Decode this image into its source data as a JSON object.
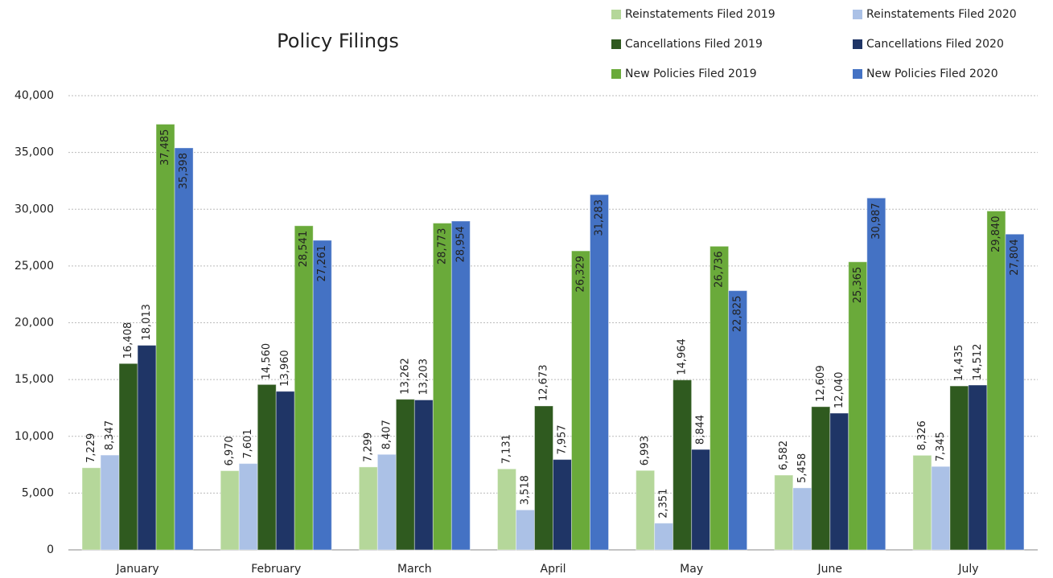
{
  "chart_data": {
    "type": "bar",
    "title": "Policy Filings",
    "categories": [
      "January",
      "February",
      "March",
      "April",
      "May",
      "June",
      "July"
    ],
    "series": [
      {
        "name": "Reinstatements Filed 2019",
        "color": "#b5d79a",
        "values": [
          7229,
          6970,
          7299,
          7131,
          6993,
          6582,
          8326
        ],
        "value_labels": [
          "7,229",
          "6,970",
          "7,299",
          "7,131",
          "6,993",
          "6,582",
          "8,326"
        ]
      },
      {
        "name": "Reinstatements Filed 2020",
        "color": "#abc1e6",
        "values": [
          8347,
          7601,
          8407,
          3518,
          2351,
          5458,
          7345
        ],
        "value_labels": [
          "8,347",
          "7,601",
          "8,407",
          "3,518",
          "2,351",
          "5,458",
          "7,345"
        ]
      },
      {
        "name": "Cancellations Filed 2019",
        "color": "#2f5a1f",
        "values": [
          16408,
          14560,
          13262,
          12673,
          14964,
          12609,
          14435
        ],
        "value_labels": [
          "16,408",
          "14,560",
          "13,262",
          "12,673",
          "14,964",
          "12,609",
          "14,435"
        ]
      },
      {
        "name": "Cancellations Filed 2020",
        "color": "#1f3566",
        "values": [
          18013,
          13960,
          13203,
          7957,
          8844,
          12040,
          14512
        ],
        "value_labels": [
          "18,013",
          "13,960",
          "13,203",
          "7,957",
          "8,844",
          "12,040",
          "14,512"
        ]
      },
      {
        "name": "New Policies Filed 2019",
        "color": "#6aaa3a",
        "values": [
          37485,
          28541,
          28773,
          26329,
          26736,
          25365,
          29840
        ],
        "value_labels": [
          "37,485",
          "28,541",
          "28,773",
          "26,329",
          "26,736",
          "25,365",
          "29,840"
        ]
      },
      {
        "name": "New Policies Filed 2020",
        "color": "#4472c4",
        "values": [
          35398,
          27261,
          28954,
          31283,
          22825,
          30987,
          27804
        ],
        "value_labels": [
          "35,398",
          "27,261",
          "28,954",
          "31,283",
          "22,825",
          "30,987",
          "27,804"
        ]
      }
    ],
    "ylim": [
      0,
      40000
    ],
    "yticks": [
      0,
      {
        "value": 5000,
        "label": "5,000"
      },
      {
        "value": 10000,
        "label": "10,000"
      },
      {
        "value": 15000,
        "label": "15,000"
      },
      {
        "value": 20000,
        "label": "20,000"
      },
      {
        "value": 25000,
        "label": "25,000"
      },
      {
        "value": 30000,
        "label": "30,000"
      },
      {
        "value": 35000,
        "label": "35,000"
      },
      {
        "value": 40000,
        "label": "40,000"
      }
    ],
    "grid": true,
    "legend": "top-right"
  }
}
